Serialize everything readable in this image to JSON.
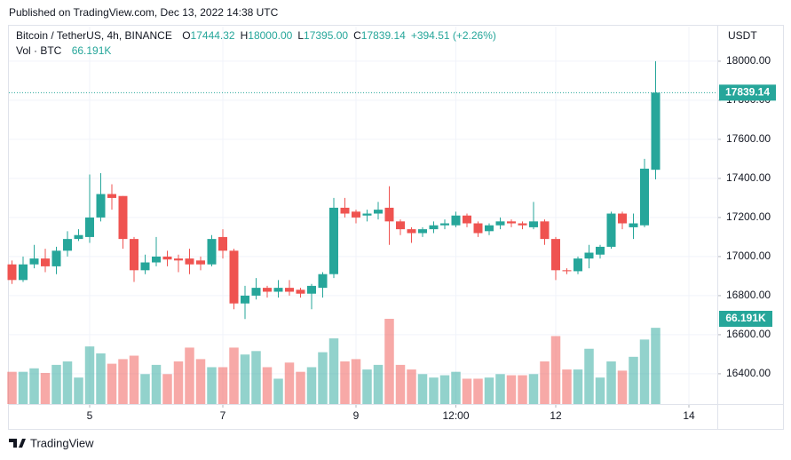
{
  "published": "Published on TradingView.com, Dec 13, 2022 14:38 UTC",
  "brand": "TradingView",
  "chart_data": {
    "type": "candlestick",
    "title": "Bitcoin / TetherUS, 4h, BINANCE",
    "ohlc_letters": [
      "O",
      "H",
      "L",
      "C"
    ],
    "ohlc_values": [
      "17444.32",
      "18000.00",
      "17395.00",
      "17839.14"
    ],
    "change": "+394.51 (+2.26%)",
    "volume_title": "Vol · BTC",
    "volume_value_label": "66.191K",
    "currency": "USDT",
    "up_color": "#26a69a",
    "down_color": "#ef5350",
    "grid": true,
    "x": [
      0,
      1,
      2,
      3,
      4,
      5,
      6,
      7,
      8,
      9,
      10,
      11,
      12,
      13,
      14,
      15,
      16,
      17,
      18,
      19,
      20,
      21,
      22,
      23,
      24,
      25,
      26,
      27,
      28,
      29,
      30,
      31,
      32,
      33,
      34,
      35,
      36,
      37,
      38,
      39,
      40,
      41,
      42,
      43,
      44,
      45,
      46,
      47,
      48,
      49,
      50,
      51,
      52,
      53,
      54,
      55,
      56,
      57,
      58
    ],
    "open": [
      16960,
      16880,
      16960,
      16990,
      16950,
      17030,
      17090,
      17100,
      17200,
      17320,
      17310,
      17090,
      16930,
      16970,
      17000,
      16990,
      16990,
      16980,
      16960,
      17100,
      17030,
      16760,
      16800,
      16840,
      16820,
      16840,
      16830,
      16810,
      16840,
      16910,
      17250,
      17230,
      17210,
      17220,
      17250,
      17180,
      17140,
      17120,
      17140,
      17160,
      17160,
      17210,
      17170,
      17130,
      17160,
      17180,
      17170,
      17150,
      17180,
      17090,
      16930,
      16925,
      16990,
      17010,
      17050,
      17220,
      17150,
      17160,
      17444.32
    ],
    "high": [
      16980,
      17000,
      17060,
      17040,
      17050,
      17130,
      17140,
      17420,
      17427,
      17370,
      17310,
      17100,
      17010,
      17100,
      17030,
      17010,
      17040,
      17000,
      17110,
      17140,
      17040,
      16850,
      16890,
      16850,
      16880,
      16880,
      16840,
      16860,
      16920,
      17300,
      17300,
      17240,
      17240,
      17280,
      17360,
      17190,
      17150,
      17150,
      17180,
      17190,
      17230,
      17220,
      17180,
      17170,
      17200,
      17190,
      17180,
      17280,
      17190,
      17100,
      16940,
      17000,
      17060,
      17060,
      17230,
      17230,
      17220,
      17500,
      18000
    ],
    "low": [
      16860,
      16870,
      16940,
      16920,
      16910,
      17000,
      17080,
      17070,
      17180,
      17240,
      17040,
      16870,
      16910,
      16950,
      16950,
      16920,
      16910,
      16930,
      16950,
      16990,
      16730,
      16680,
      16780,
      16790,
      16790,
      16800,
      16790,
      16730,
      16790,
      16890,
      17200,
      17170,
      17180,
      17190,
      17060,
      17110,
      17070,
      17100,
      17120,
      17140,
      17150,
      17150,
      17100,
      17110,
      17140,
      17150,
      17140,
      17140,
      17060,
      16880,
      16910,
      16910,
      16940,
      16990,
      17040,
      17140,
      17090,
      17150,
      17395
    ],
    "close": [
      16880,
      16960,
      16990,
      16950,
      17030,
      17090,
      17110,
      17200,
      17320,
      17300,
      17090,
      16930,
      16970,
      17000,
      16985,
      16980,
      16960,
      16960,
      17090,
      17030,
      16760,
      16800,
      16840,
      16820,
      16840,
      16820,
      16810,
      16850,
      16910,
      17250,
      17220,
      17200,
      17220,
      17240,
      17180,
      17140,
      17120,
      17140,
      17160,
      17170,
      17210,
      17170,
      17120,
      17160,
      17180,
      17170,
      17160,
      17180,
      17090,
      16930,
      16925,
      16990,
      17020,
      17050,
      17220,
      17170,
      17170,
      17450,
      17839.14
    ],
    "volume": [
      28,
      28,
      31,
      27,
      34,
      37,
      23,
      50,
      44,
      35,
      39,
      42,
      26,
      34,
      26,
      37,
      49,
      39,
      32,
      32,
      49,
      43,
      46,
      32,
      22,
      36,
      28,
      32,
      45,
      57,
      37,
      39,
      30,
      34,
      74,
      34,
      30,
      26,
      23,
      25,
      28,
      22,
      22,
      23,
      26,
      25,
      25,
      26,
      37,
      59,
      30,
      30,
      48,
      23,
      37,
      29,
      41,
      56,
      66.191
    ],
    "xlim": [
      -0.28,
      63.56
    ],
    "xticks": [
      {
        "value": 7,
        "label": "5"
      },
      {
        "value": 19,
        "label": "7"
      },
      {
        "value": 31,
        "label": "9"
      },
      {
        "value": 40,
        "label": "12:00"
      },
      {
        "value": 49,
        "label": "12"
      },
      {
        "value": 61,
        "label": "14"
      }
    ],
    "ylim": [
      16245,
      18177
    ],
    "yticks": [
      {
        "value": 16400,
        "label": "16400.00"
      },
      {
        "value": 16600,
        "label": "16600.00"
      },
      {
        "value": 16800,
        "label": "16800.00"
      },
      {
        "value": 17000,
        "label": "17000.00"
      },
      {
        "value": 17200,
        "label": "17200.00"
      },
      {
        "value": 17400,
        "label": "17400.00"
      },
      {
        "value": 17600,
        "label": "17600.00"
      },
      {
        "value": 17800,
        "label": "17800.00"
      },
      {
        "value": 18000,
        "label": "18000.00"
      }
    ]
  }
}
